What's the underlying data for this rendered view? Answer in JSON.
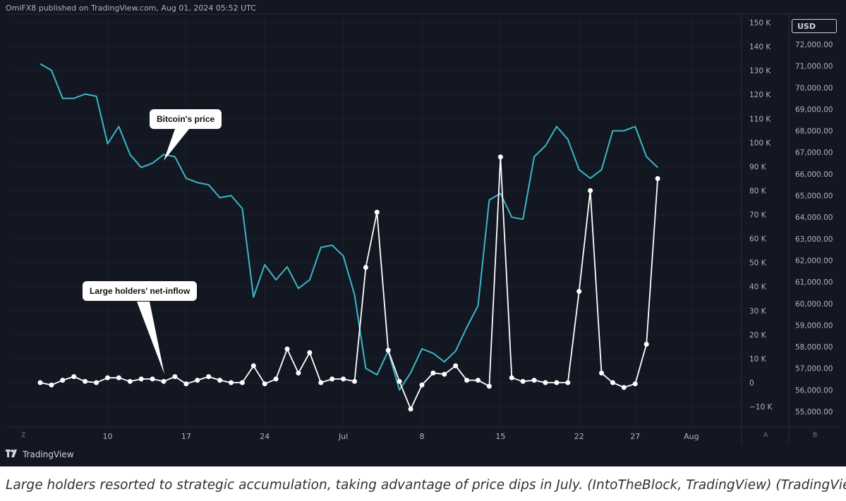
{
  "header": {
    "published": "OmiFX8 published on TradingView.com, Aug 01, 2024 05:52 UTC"
  },
  "brand": {
    "name": "TradingView",
    "logo_icon": "tradingview-logo-icon"
  },
  "corners": {
    "left_scale": "Z",
    "right_scale_a": "A",
    "right_scale_b": "B"
  },
  "annotations": {
    "price_label": "Bitcoin's price",
    "flow_label": "Large holders' net-inflow"
  },
  "caption": "Large holders resorted to strategic accumulation, taking advantage of price dips in July. (IntoTheBlock, TradingView) (TradingView)",
  "colors": {
    "background": "#131722",
    "price_line": "#3bb7c6",
    "flow_line": "#ffffff",
    "text": "#b2b5be"
  },
  "chart_data": {
    "type": "line",
    "x_axis": {
      "tick_labels": [
        "10",
        "17",
        "24",
        "Jul",
        "8",
        "15",
        "22",
        "27",
        "Aug"
      ],
      "tick_days": [
        10,
        17,
        24,
        31,
        38,
        45,
        52,
        57,
        62
      ],
      "range_days": [
        3.5,
        64
      ],
      "note_days": "day index counted from Jun 1 = 1"
    },
    "y_axis_left": {
      "tick_labels": [
        "150 K",
        "140 K",
        "130 K",
        "120 K",
        "110 K",
        "100 K",
        "90 K",
        "80 K",
        "70 K",
        "60 K",
        "50 K",
        "40 K",
        "30 K",
        "20 K",
        "10 K",
        "0",
        "−10 K"
      ],
      "tick_values": [
        150000,
        140000,
        130000,
        120000,
        110000,
        100000,
        90000,
        80000,
        70000,
        60000,
        50000,
        40000,
        30000,
        20000,
        10000,
        0,
        -10000
      ],
      "range": [
        -16000,
        153000
      ]
    },
    "y_axis_right": {
      "unit": "USD",
      "tick_labels": [
        "72,000.00",
        "71,000.00",
        "70,000.00",
        "69,000.00",
        "68,000.00",
        "67,000.00",
        "66,000.00",
        "65,000.00",
        "64,000.00",
        "63,000.00",
        "62,000.00",
        "61,000.00",
        "60,000.00",
        "59,000.00",
        "58,000.00",
        "57,000.00",
        "56,000.00",
        "55,000.00"
      ],
      "tick_values": [
        72000,
        71000,
        70000,
        69000,
        68000,
        67000,
        66000,
        65000,
        64000,
        63000,
        62000,
        61000,
        60000,
        59000,
        58000,
        57000,
        56000,
        55000
      ],
      "range": [
        54250,
        73250
      ]
    },
    "series": [
      {
        "name": "Bitcoin's price",
        "axis": "right",
        "color": "#3bb7c6",
        "x": [
          4,
          5,
          6,
          7,
          8,
          9,
          10,
          11,
          12,
          13,
          14,
          15,
          16,
          17,
          18,
          19,
          20,
          21,
          22,
          23,
          24,
          25,
          26,
          27,
          28,
          29,
          30,
          31,
          32,
          33,
          34,
          35,
          36,
          37,
          38,
          39,
          40,
          41,
          42,
          43,
          44,
          45,
          46,
          47,
          48,
          49,
          50,
          51,
          52,
          53,
          54,
          55,
          56,
          57,
          58,
          59,
          60
        ],
        "values": [
          71100,
          70800,
          69500,
          69500,
          69700,
          69600,
          67400,
          68200,
          66900,
          66300,
          66500,
          66900,
          66800,
          65800,
          65600,
          65500,
          64900,
          65000,
          64400,
          60300,
          61800,
          61100,
          61700,
          60700,
          61100,
          62600,
          62700,
          62200,
          60400,
          57000,
          56700,
          57800,
          56000,
          56800,
          57900,
          57700,
          57300,
          57800,
          58900,
          59900,
          64800,
          65100,
          64000,
          63900,
          66800,
          67300,
          68200,
          67600,
          66200,
          65800,
          66200,
          68000,
          68000,
          68200,
          66800,
          66300,
          null
        ],
        "note": "value list ends at Jul 30"
      },
      {
        "name": "Large holders' net-inflow",
        "axis": "left",
        "color": "#ffffff",
        "x": [
          4,
          5,
          6,
          7,
          8,
          9,
          10,
          11,
          12,
          13,
          14,
          15,
          16,
          17,
          18,
          19,
          20,
          21,
          22,
          23,
          24,
          25,
          26,
          27,
          28,
          29,
          30,
          31,
          32,
          33,
          34,
          35,
          36,
          37,
          38,
          39,
          40,
          41,
          42,
          43,
          44,
          45,
          46,
          47,
          48,
          49,
          50,
          51,
          52,
          53,
          54,
          55,
          56,
          57,
          58,
          59,
          60
        ],
        "values": [
          0,
          -1000,
          1000,
          2500,
          500,
          0,
          2000,
          2000,
          500,
          1500,
          1500,
          500,
          2500,
          -500,
          1000,
          2500,
          1000,
          0,
          0,
          7000,
          -500,
          1500,
          14000,
          4000,
          12500,
          0,
          1500,
          1500,
          500,
          48000,
          71000,
          13500,
          500,
          -11000,
          -1000,
          4000,
          3500,
          7000,
          1000,
          1000,
          -1500,
          94000,
          2000,
          500,
          1000,
          0,
          0,
          0,
          38000,
          80000,
          4000,
          0,
          -2000,
          -500,
          16000,
          85000,
          null
        ],
        "note": "value list ends at Jul 31"
      }
    ]
  }
}
